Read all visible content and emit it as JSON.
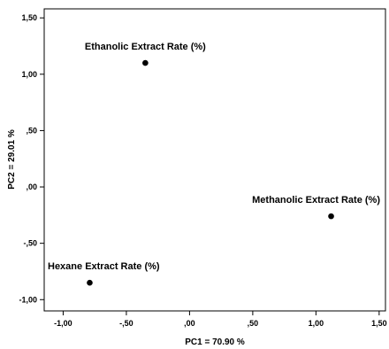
{
  "chart_data": {
    "type": "scatter",
    "title": "",
    "xlabel": "PC1 = 70.90 %",
    "ylabel": "PC2 = 29.01 %",
    "xlim": [
      -1.15,
      1.55
    ],
    "ylim": [
      -1.1,
      1.58
    ],
    "xticks": [
      -1.0,
      -0.5,
      0.0,
      0.5,
      1.0,
      1.5
    ],
    "yticks": [
      1.5,
      1.0,
      0.5,
      0.0,
      -0.5,
      -1.0
    ],
    "xtick_labels": [
      "-1,00",
      "-,50",
      ",00",
      ",50",
      "1,00",
      "1,50"
    ],
    "ytick_labels": [
      "1,50",
      "1,00",
      ",50",
      ",00",
      "-,50",
      "-1,00"
    ],
    "grid": false,
    "points": [
      {
        "label": "Ethanolic Extract Rate (%)",
        "x": -0.35,
        "y": 1.1
      },
      {
        "label": "Methanolic Extract Rate (%)",
        "x": 1.12,
        "y": -0.26
      },
      {
        "label": "Hexane Extract Rate (%)",
        "x": -0.79,
        "y": -0.85
      }
    ],
    "point_color": "#000000",
    "axis_color": "#000000"
  }
}
